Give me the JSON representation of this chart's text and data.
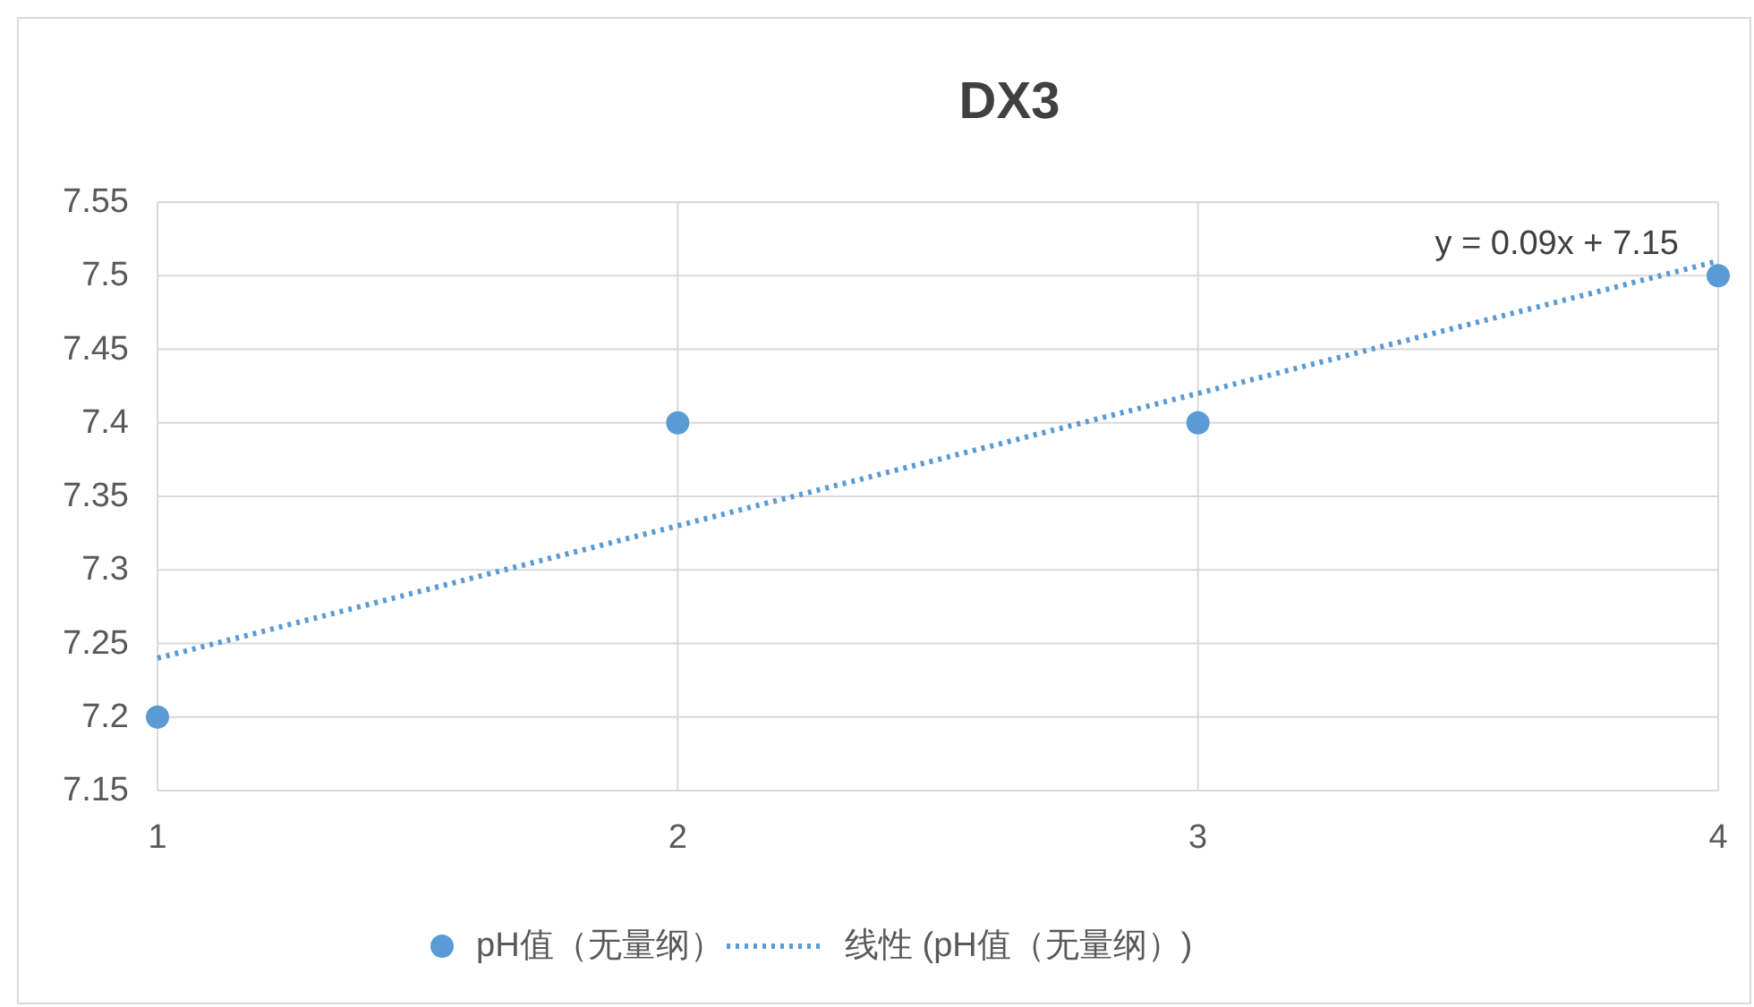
{
  "chart_data": {
    "type": "scatter",
    "title": "DX3",
    "x": [
      1,
      2,
      3,
      4
    ],
    "series": [
      {
        "name": "pH值（无量纲）",
        "color": "#5b9bd5",
        "values": [
          7.2,
          7.4,
          7.4,
          7.5
        ],
        "marker": "circle"
      },
      {
        "name": "线性 (pH值（无量纲）)",
        "type": "line",
        "color": "#5b9bd5",
        "x": [
          1,
          4
        ],
        "values": [
          7.24,
          7.51
        ],
        "line_style": "dotted",
        "marker": "none"
      }
    ],
    "annotations": [
      "y = 0.09x + 7.15"
    ],
    "xlim": [
      1,
      4
    ],
    "xticks": [
      1,
      2,
      3,
      4
    ],
    "ylim": [
      7.15,
      7.55
    ],
    "yticks": [
      7.15,
      7.2,
      7.25,
      7.3,
      7.35,
      7.4,
      7.45,
      7.5,
      7.55
    ],
    "grid": true,
    "legend": "bottom"
  }
}
